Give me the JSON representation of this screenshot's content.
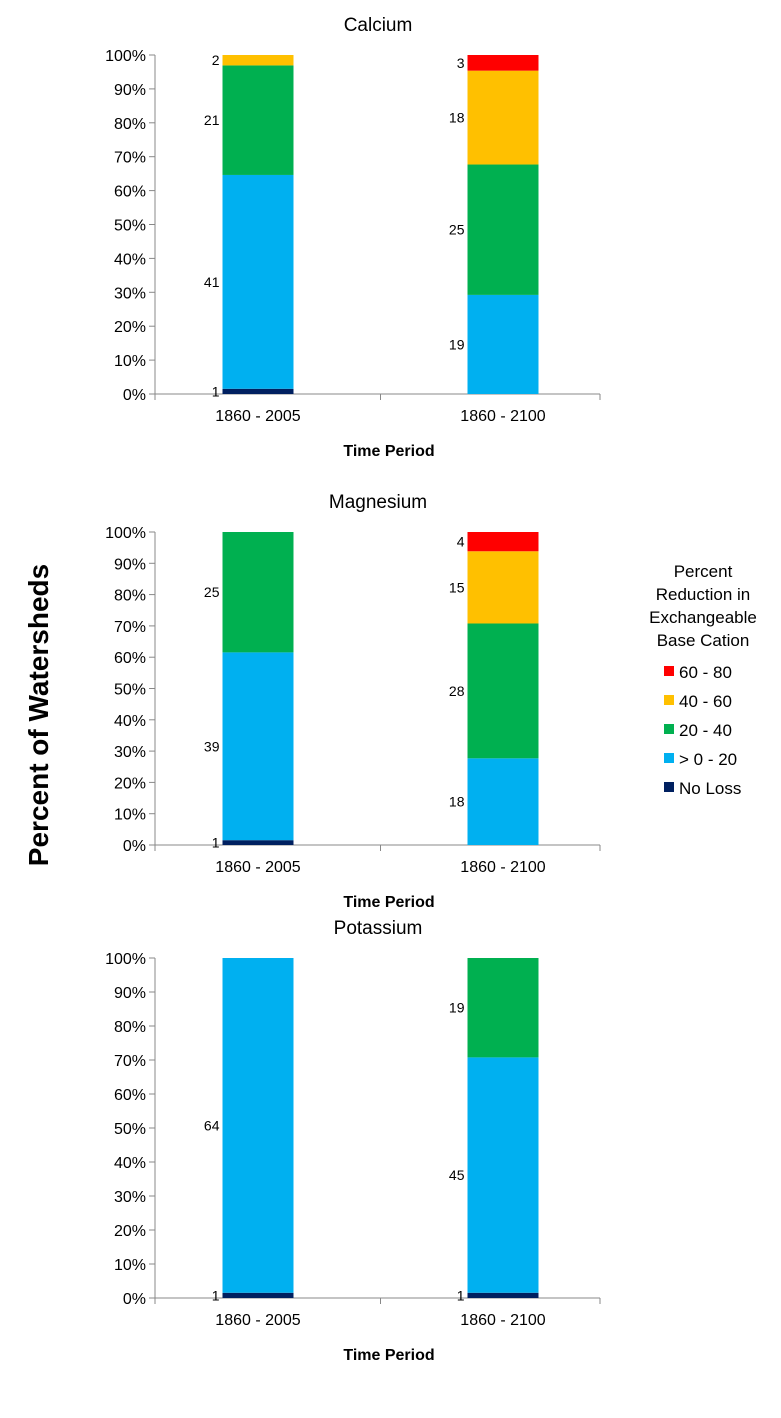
{
  "ylabel": "Percent of Watersheds",
  "legend": {
    "title": [
      "Percent",
      "Reduction in",
      "Exchangeable",
      "Base Cation"
    ],
    "items": [
      {
        "label": "60 - 80",
        "color": "#ff0000"
      },
      {
        "label": "40 - 60",
        "color": "#ffc000"
      },
      {
        "label": "20 - 40",
        "color": "#00b050"
      },
      {
        "label": "> 0 - 20",
        "color": "#00b0f0"
      },
      {
        "label": "No Loss",
        "color": "#002060"
      }
    ]
  },
  "chart_data": [
    {
      "type": "bar",
      "stacked": "percent",
      "title": "Calcium",
      "xlabel": "Time Period",
      "ylabel": "Percent of Watersheds",
      "ylim": [
        0,
        100
      ],
      "yticks": [
        "0%",
        "10%",
        "20%",
        "30%",
        "40%",
        "50%",
        "60%",
        "70%",
        "80%",
        "90%",
        "100%"
      ],
      "categories": [
        "1860 - 2005",
        "1860 - 2100"
      ],
      "series": [
        {
          "name": "No Loss",
          "values": [
            1,
            0
          ]
        },
        {
          "name": "> 0 - 20",
          "values": [
            41,
            19
          ]
        },
        {
          "name": "20 - 40",
          "values": [
            21,
            25
          ]
        },
        {
          "name": "40 - 60",
          "values": [
            2,
            18
          ]
        },
        {
          "name": "60 - 80",
          "values": [
            0,
            3
          ]
        }
      ]
    },
    {
      "type": "bar",
      "stacked": "percent",
      "title": "Magnesium",
      "xlabel": "Time Period",
      "ylabel": "Percent of Watersheds",
      "ylim": [
        0,
        100
      ],
      "yticks": [
        "0%",
        "10%",
        "20%",
        "30%",
        "40%",
        "50%",
        "60%",
        "70%",
        "80%",
        "90%",
        "100%"
      ],
      "categories": [
        "1860 - 2005",
        "1860 - 2100"
      ],
      "series": [
        {
          "name": "No Loss",
          "values": [
            1,
            0
          ]
        },
        {
          "name": "> 0 - 20",
          "values": [
            39,
            18
          ]
        },
        {
          "name": "20 - 40",
          "values": [
            25,
            28
          ]
        },
        {
          "name": "40 - 60",
          "values": [
            0,
            15
          ]
        },
        {
          "name": "60 - 80",
          "values": [
            0,
            4
          ]
        }
      ]
    },
    {
      "type": "bar",
      "stacked": "percent",
      "title": "Potassium",
      "xlabel": "Time Period",
      "ylabel": "Percent of Watersheds",
      "ylim": [
        0,
        100
      ],
      "yticks": [
        "0%",
        "10%",
        "20%",
        "30%",
        "40%",
        "50%",
        "60%",
        "70%",
        "80%",
        "90%",
        "100%"
      ],
      "categories": [
        "1860 - 2005",
        "1860 - 2100"
      ],
      "series": [
        {
          "name": "No Loss",
          "values": [
            1,
            1
          ]
        },
        {
          "name": "> 0 - 20",
          "values": [
            64,
            45
          ]
        },
        {
          "name": "20 - 40",
          "values": [
            0,
            19
          ]
        },
        {
          "name": "40 - 60",
          "values": [
            0,
            0
          ]
        },
        {
          "name": "60 - 80",
          "values": [
            0,
            0
          ]
        }
      ]
    }
  ]
}
